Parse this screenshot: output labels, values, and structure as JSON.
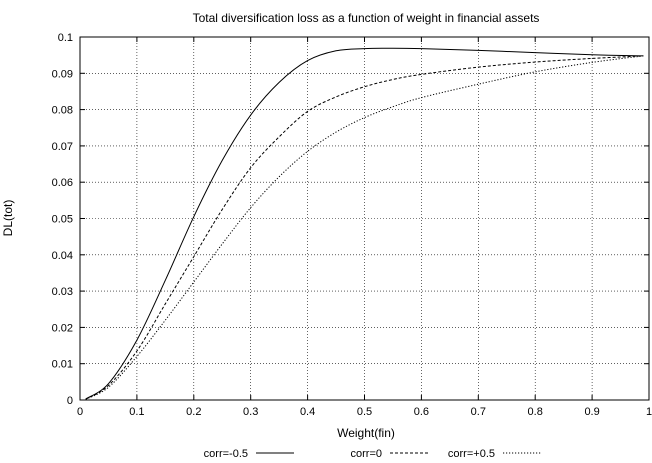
{
  "chart_data": {
    "type": "line",
    "title": "Total diversification loss as a function of weight in financial assets",
    "xlabel": "Weight(fin)",
    "ylabel": "DL(tot)",
    "xlim": [
      0,
      1
    ],
    "ylim": [
      0,
      0.1
    ],
    "xticks": [
      "0",
      "0.1",
      "0.2",
      "0.3",
      "0.4",
      "0.5",
      "0.6",
      "0.7",
      "0.8",
      "0.9",
      "1"
    ],
    "yticks": [
      "0",
      "0.01",
      "0.02",
      "0.03",
      "0.04",
      "0.05",
      "0.06",
      "0.07",
      "0.08",
      "0.09",
      "0.1"
    ],
    "grid": true,
    "legend_position": "bottom",
    "series": [
      {
        "name": "corr=-0.5",
        "style": "solid",
        "x": [
          0.01,
          0.05,
          0.1,
          0.15,
          0.2,
          0.25,
          0.3,
          0.35,
          0.4,
          0.45,
          0.5,
          0.55,
          0.6,
          0.7,
          0.8,
          0.9,
          0.99
        ],
        "y": [
          0.0003,
          0.0045,
          0.0165,
          0.033,
          0.0505,
          0.066,
          0.0785,
          0.0875,
          0.0935,
          0.0962,
          0.0968,
          0.0969,
          0.0968,
          0.0963,
          0.0957,
          0.0951,
          0.0948
        ]
      },
      {
        "name": "corr=0",
        "style": "dashed",
        "x": [
          0.01,
          0.05,
          0.1,
          0.15,
          0.2,
          0.25,
          0.3,
          0.35,
          0.4,
          0.45,
          0.5,
          0.55,
          0.6,
          0.7,
          0.8,
          0.9,
          0.99
        ],
        "y": [
          0.0002,
          0.004,
          0.0135,
          0.0265,
          0.0395,
          0.0525,
          0.064,
          0.0725,
          0.0795,
          0.0835,
          0.0863,
          0.0883,
          0.0897,
          0.0917,
          0.0931,
          0.0941,
          0.0948
        ]
      },
      {
        "name": "corr=+0.5",
        "style": "dotted",
        "x": [
          0.01,
          0.05,
          0.1,
          0.15,
          0.2,
          0.25,
          0.3,
          0.35,
          0.4,
          0.45,
          0.5,
          0.55,
          0.6,
          0.7,
          0.8,
          0.9,
          0.99
        ],
        "y": [
          0.0002,
          0.0035,
          0.012,
          0.022,
          0.0325,
          0.043,
          0.053,
          0.0615,
          0.0685,
          0.0738,
          0.0778,
          0.0808,
          0.0833,
          0.087,
          0.0904,
          0.093,
          0.0948
        ]
      }
    ]
  }
}
